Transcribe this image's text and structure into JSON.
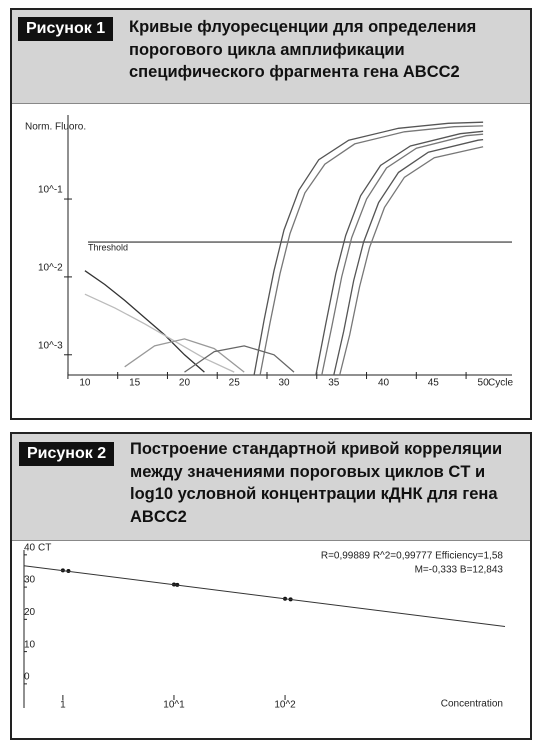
{
  "chart_data": [
    {
      "type": "line",
      "label": "Рисунок 1",
      "title": "Кривые флуоресценции для определения порогового цикла амплификации специфического фрагмента гена ABCC2",
      "ylabel": "Norm. Fluoro.",
      "xlabel": "Cycle",
      "log_y": true,
      "grid": false,
      "xlim": [
        8.3,
        51.7
      ],
      "ylim": [
        0.00055,
        1.2
      ],
      "xticks": [
        10,
        15,
        20,
        25,
        30,
        35,
        40,
        45,
        50
      ],
      "yticks": [
        {
          "value": 0.001,
          "label": "10^-3"
        },
        {
          "value": 0.01,
          "label": "10^-2"
        },
        {
          "value": 0.1,
          "label": "10^-1"
        }
      ],
      "threshold": {
        "label": "Threshold",
        "value": 0.028
      },
      "series": [
        {
          "color": "#555555",
          "x": [
            27,
            28,
            29,
            30,
            31.5,
            33.5,
            36.5,
            41.5,
            46.5,
            50
          ],
          "values": [
            0.00055,
            0.0028,
            0.012,
            0.04,
            0.13,
            0.32,
            0.57,
            0.81,
            0.94,
            0.97
          ]
        },
        {
          "color": "#777777",
          "x": [
            27.6,
            28.6,
            29.6,
            30.6,
            32.1,
            34.1,
            37.1,
            42.1,
            47.1,
            50
          ],
          "values": [
            0.00055,
            0.0026,
            0.011,
            0.036,
            0.12,
            0.28,
            0.51,
            0.73,
            0.85,
            0.87
          ]
        },
        {
          "color": "#555555",
          "x": [
            33.2,
            34.2,
            35.2,
            36.2,
            37.7,
            39.7,
            42.7,
            47.7,
            50
          ],
          "values": [
            0.00055,
            0.0025,
            0.011,
            0.034,
            0.11,
            0.27,
            0.48,
            0.69,
            0.74
          ]
        },
        {
          "color": "#777777",
          "x": [
            33.8,
            34.8,
            35.8,
            36.8,
            38.3,
            40.3,
            43.3,
            48.3,
            50
          ],
          "values": [
            0.00055,
            0.0023,
            0.01,
            0.032,
            0.1,
            0.25,
            0.45,
            0.65,
            0.68
          ]
        },
        {
          "color": "#555555",
          "x": [
            35,
            36,
            37,
            38,
            39.5,
            41.5,
            44.5,
            49.5,
            50
          ],
          "values": [
            0.00055,
            0.002,
            0.009,
            0.028,
            0.09,
            0.22,
            0.4,
            0.57,
            0.58
          ]
        },
        {
          "color": "#777777",
          "x": [
            35.6,
            36.6,
            37.6,
            38.6,
            40.1,
            42.1,
            45.1,
            50
          ],
          "values": [
            0.00055,
            0.0018,
            0.0075,
            0.024,
            0.078,
            0.19,
            0.34,
            0.47
          ]
        },
        {
          "color": "#333333",
          "x": [
            10,
            12,
            14,
            16,
            18,
            20,
            22
          ],
          "values": [
            0.012,
            0.008,
            0.005,
            0.003,
            0.0018,
            0.001,
            0.0006
          ]
        },
        {
          "color": "#bbbbbb",
          "x": [
            10,
            13,
            16,
            19,
            22,
            25
          ],
          "values": [
            0.006,
            0.004,
            0.0025,
            0.0015,
            0.0009,
            0.0006
          ]
        },
        {
          "color": "#999999",
          "x": [
            14,
            17,
            20,
            23,
            26
          ],
          "values": [
            0.0007,
            0.0013,
            0.0016,
            0.0012,
            0.0006
          ]
        },
        {
          "color": "#666666",
          "x": [
            20,
            23,
            26,
            29,
            31
          ],
          "values": [
            0.0006,
            0.0011,
            0.0013,
            0.001,
            0.0006
          ]
        }
      ]
    },
    {
      "type": "scatter",
      "label": "Рисунок 2",
      "title": "Построение стандартной кривой корреляции между значениями пороговых циклов CT и log10 условной концентрации кДНК для гена ABCC2",
      "ylabel": "CT",
      "xlabel": "Concentration",
      "grid": false,
      "annotations": [
        "R=0,99889 R^2=0,99777 Efficiency=1,58",
        "M=-0,333 B=12,843"
      ],
      "xlim": [
        -0.35,
        3.98
      ],
      "ylim": [
        -5,
        41.5
      ],
      "xticks": [
        {
          "value": 0,
          "label": "1"
        },
        {
          "value": 1,
          "label": "10^1"
        },
        {
          "value": 2,
          "label": "10^2"
        }
      ],
      "yticks": [
        0,
        10,
        20,
        30,
        40
      ],
      "series": [
        {
          "type": "scatter",
          "color": "#111111",
          "x": [
            0,
            0.05,
            1,
            1.03,
            2,
            2.05
          ],
          "values": [
            35.2,
            35.0,
            30.8,
            30.7,
            26.4,
            26.2
          ]
        },
        {
          "type": "line",
          "color": "#333333",
          "x": [
            -0.35,
            3.98
          ],
          "values": [
            36.6,
            17.8
          ]
        }
      ]
    }
  ]
}
